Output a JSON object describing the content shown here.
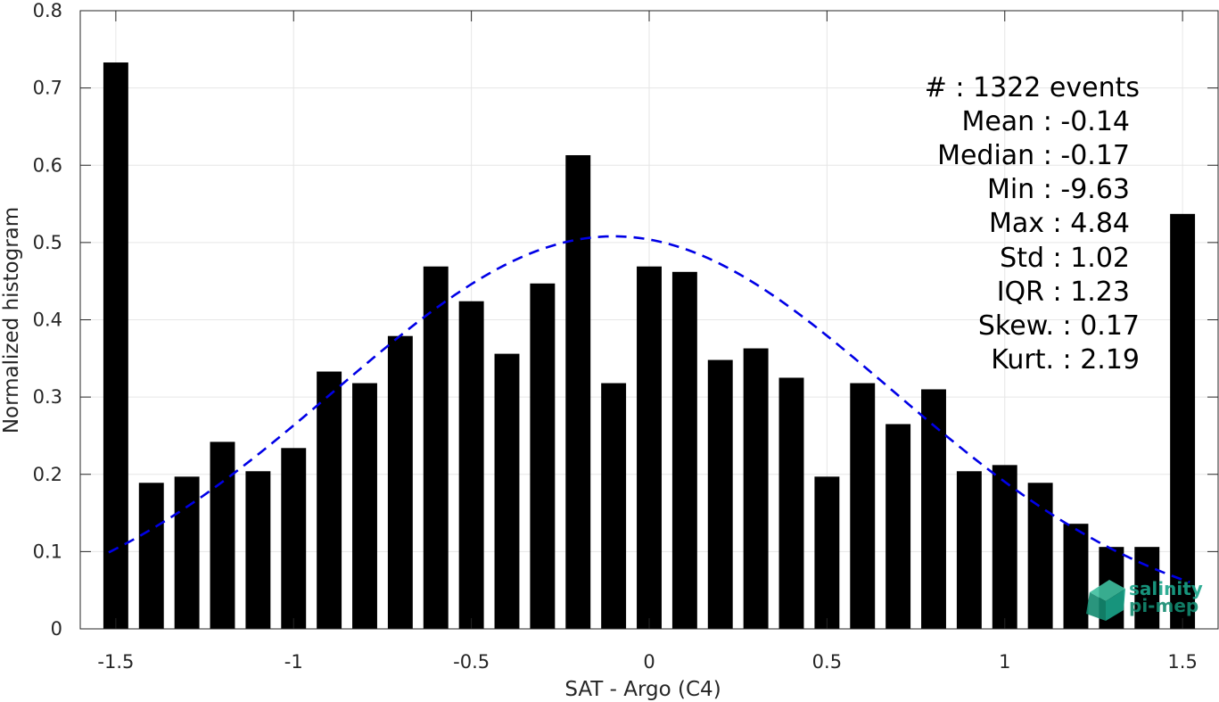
{
  "chart_data": {
    "type": "bar",
    "xlabel": "SAT - Argo (C4)",
    "ylabel": "Normalized histogram",
    "xlim": [
      -1.6,
      1.6
    ],
    "ylim": [
      0,
      0.8
    ],
    "xticks": [
      -1.5,
      -1,
      -0.5,
      0,
      0.5,
      1,
      1.5
    ],
    "xtick_labels": [
      "-1.5",
      "-1",
      "-0.5",
      "0",
      "0.5",
      "1",
      "1.5"
    ],
    "yticks": [
      0,
      0.1,
      0.2,
      0.3,
      0.4,
      0.5,
      0.6,
      0.7,
      0.8
    ],
    "ytick_labels": [
      "0",
      "0.1",
      "0.2",
      "0.3",
      "0.4",
      "0.5",
      "0.6",
      "0.7",
      "0.8"
    ],
    "grid": true,
    "bar_width": 0.07,
    "x": [
      -1.5,
      -1.4,
      -1.3,
      -1.2,
      -1.1,
      -1.0,
      -0.9,
      -0.8,
      -0.7,
      -0.6,
      -0.5,
      -0.4,
      -0.3,
      -0.2,
      -0.1,
      0.0,
      0.1,
      0.2,
      0.3,
      0.4,
      0.5,
      0.6,
      0.7,
      0.8,
      0.9,
      1.0,
      1.1,
      1.2,
      1.3,
      1.4,
      1.5
    ],
    "values": [
      0.733,
      0.189,
      0.197,
      0.242,
      0.204,
      0.234,
      0.333,
      0.318,
      0.379,
      0.469,
      0.424,
      0.356,
      0.447,
      0.613,
      0.318,
      0.469,
      0.462,
      0.348,
      0.363,
      0.325,
      0.197,
      0.318,
      0.265,
      0.31,
      0.204,
      0.212,
      0.189,
      0.136,
      0.106,
      0.106,
      0.537
    ],
    "bar_color": "#000000",
    "fit": {
      "type": "gaussian",
      "mean": -0.1,
      "std": 0.785,
      "peak": 0.508,
      "x_range": [
        -1.52,
        1.52
      ],
      "color": "#0000e6",
      "style": "dashed"
    },
    "annotations": [
      "#  : 1322 events",
      "Mean : -0.14",
      "Median : -0.17",
      "Min : -9.63",
      "Max : 4.84",
      "Std : 1.02",
      "IQR : 1.23",
      "Skew. : 0.17",
      "Kurt. : 2.19"
    ]
  },
  "logo": {
    "line1": "salinity",
    "line2": "pi-mep",
    "color": "#1aa58a"
  }
}
